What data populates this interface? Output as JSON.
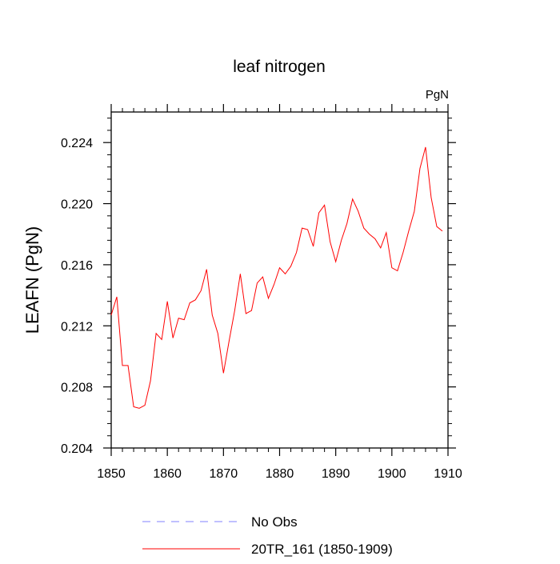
{
  "chart_data": {
    "type": "line",
    "title": "leaf nitrogen",
    "units_label": "PgN",
    "ylabel": "LEAFN  (PgN)",
    "xlabel": "",
    "xlim": [
      1850,
      1910
    ],
    "ylim": [
      0.204,
      0.226
    ],
    "x_ticks": [
      1850,
      1860,
      1870,
      1880,
      1890,
      1900,
      1910
    ],
    "x_tick_labels": [
      "1850",
      "1860",
      "1870",
      "1880",
      "1890",
      "1900",
      "1910"
    ],
    "y_ticks": [
      0.204,
      0.208,
      0.212,
      0.216,
      0.22,
      0.224
    ],
    "y_tick_labels": [
      "0.204",
      "0.208",
      "0.212",
      "0.216",
      "0.220",
      "0.224"
    ],
    "series": [
      {
        "name": "No Obs",
        "color": "#8080ff",
        "dash": true,
        "x": [],
        "values": []
      },
      {
        "name": "20TR_161 (1850-1909)",
        "color": "#ff0000",
        "dash": false,
        "x": [
          1850,
          1851,
          1852,
          1853,
          1854,
          1855,
          1856,
          1857,
          1858,
          1859,
          1860,
          1861,
          1862,
          1863,
          1864,
          1865,
          1866,
          1867,
          1868,
          1869,
          1870,
          1871,
          1872,
          1873,
          1874,
          1875,
          1876,
          1877,
          1878,
          1879,
          1880,
          1881,
          1882,
          1883,
          1884,
          1885,
          1886,
          1887,
          1888,
          1889,
          1890,
          1891,
          1892,
          1893,
          1894,
          1895,
          1896,
          1897,
          1898,
          1899,
          1900,
          1901,
          1902,
          1903,
          1904,
          1905,
          1906,
          1907,
          1908,
          1909
        ],
        "values": [
          0.2127,
          0.2139,
          0.2094,
          0.2094,
          0.2067,
          0.2066,
          0.2068,
          0.2084,
          0.2115,
          0.2111,
          0.2136,
          0.2112,
          0.2125,
          0.2124,
          0.2135,
          0.2137,
          0.2143,
          0.2157,
          0.2127,
          0.2115,
          0.2089,
          0.211,
          0.213,
          0.2154,
          0.2128,
          0.213,
          0.2148,
          0.2152,
          0.2138,
          0.2147,
          0.2158,
          0.2154,
          0.2159,
          0.2168,
          0.2184,
          0.2183,
          0.2172,
          0.2194,
          0.2199,
          0.2175,
          0.2162,
          0.2176,
          0.2187,
          0.2203,
          0.2195,
          0.2184,
          0.218,
          0.2177,
          0.2171,
          0.2181,
          0.2158,
          0.2156,
          0.2168,
          0.2182,
          0.2195,
          0.2223,
          0.2237,
          0.2204,
          0.2185,
          0.2182
        ]
      }
    ]
  }
}
